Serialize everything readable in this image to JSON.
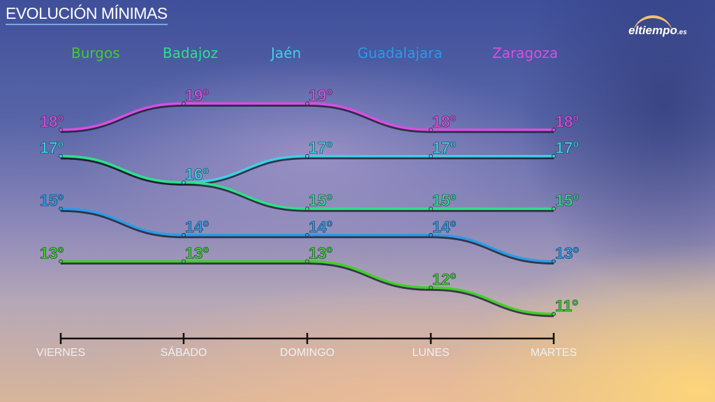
{
  "title": "EVOLUCIÓN MÍNIMAS",
  "logo": {
    "text": "eltiempo",
    "suffix": ".es"
  },
  "chart_data": {
    "type": "line",
    "title": "EVOLUCIÓN MÍNIMAS",
    "categories": [
      "VIERNES",
      "SÁBADO",
      "DOMINGO",
      "LUNES",
      "MARTES"
    ],
    "unit": "º",
    "legend_placement": "top",
    "grid": false,
    "series": [
      {
        "name": "Burgos",
        "color": "#3fcf2a",
        "values": [
          13,
          13,
          13,
          12,
          11
        ]
      },
      {
        "name": "Badajoz",
        "color": "#2ee08a",
        "values": [
          17,
          16,
          15,
          15,
          15
        ]
      },
      {
        "name": "Jaén",
        "color": "#3dd0e8",
        "values": [
          17,
          16,
          17,
          17,
          17
        ]
      },
      {
        "name": "Guadalajara",
        "color": "#2a9be8",
        "values": [
          15,
          14,
          14,
          14,
          13
        ]
      },
      {
        "name": "Zaragoza",
        "color": "#d84fe0",
        "values": [
          18,
          19,
          19,
          18,
          18
        ]
      }
    ]
  }
}
